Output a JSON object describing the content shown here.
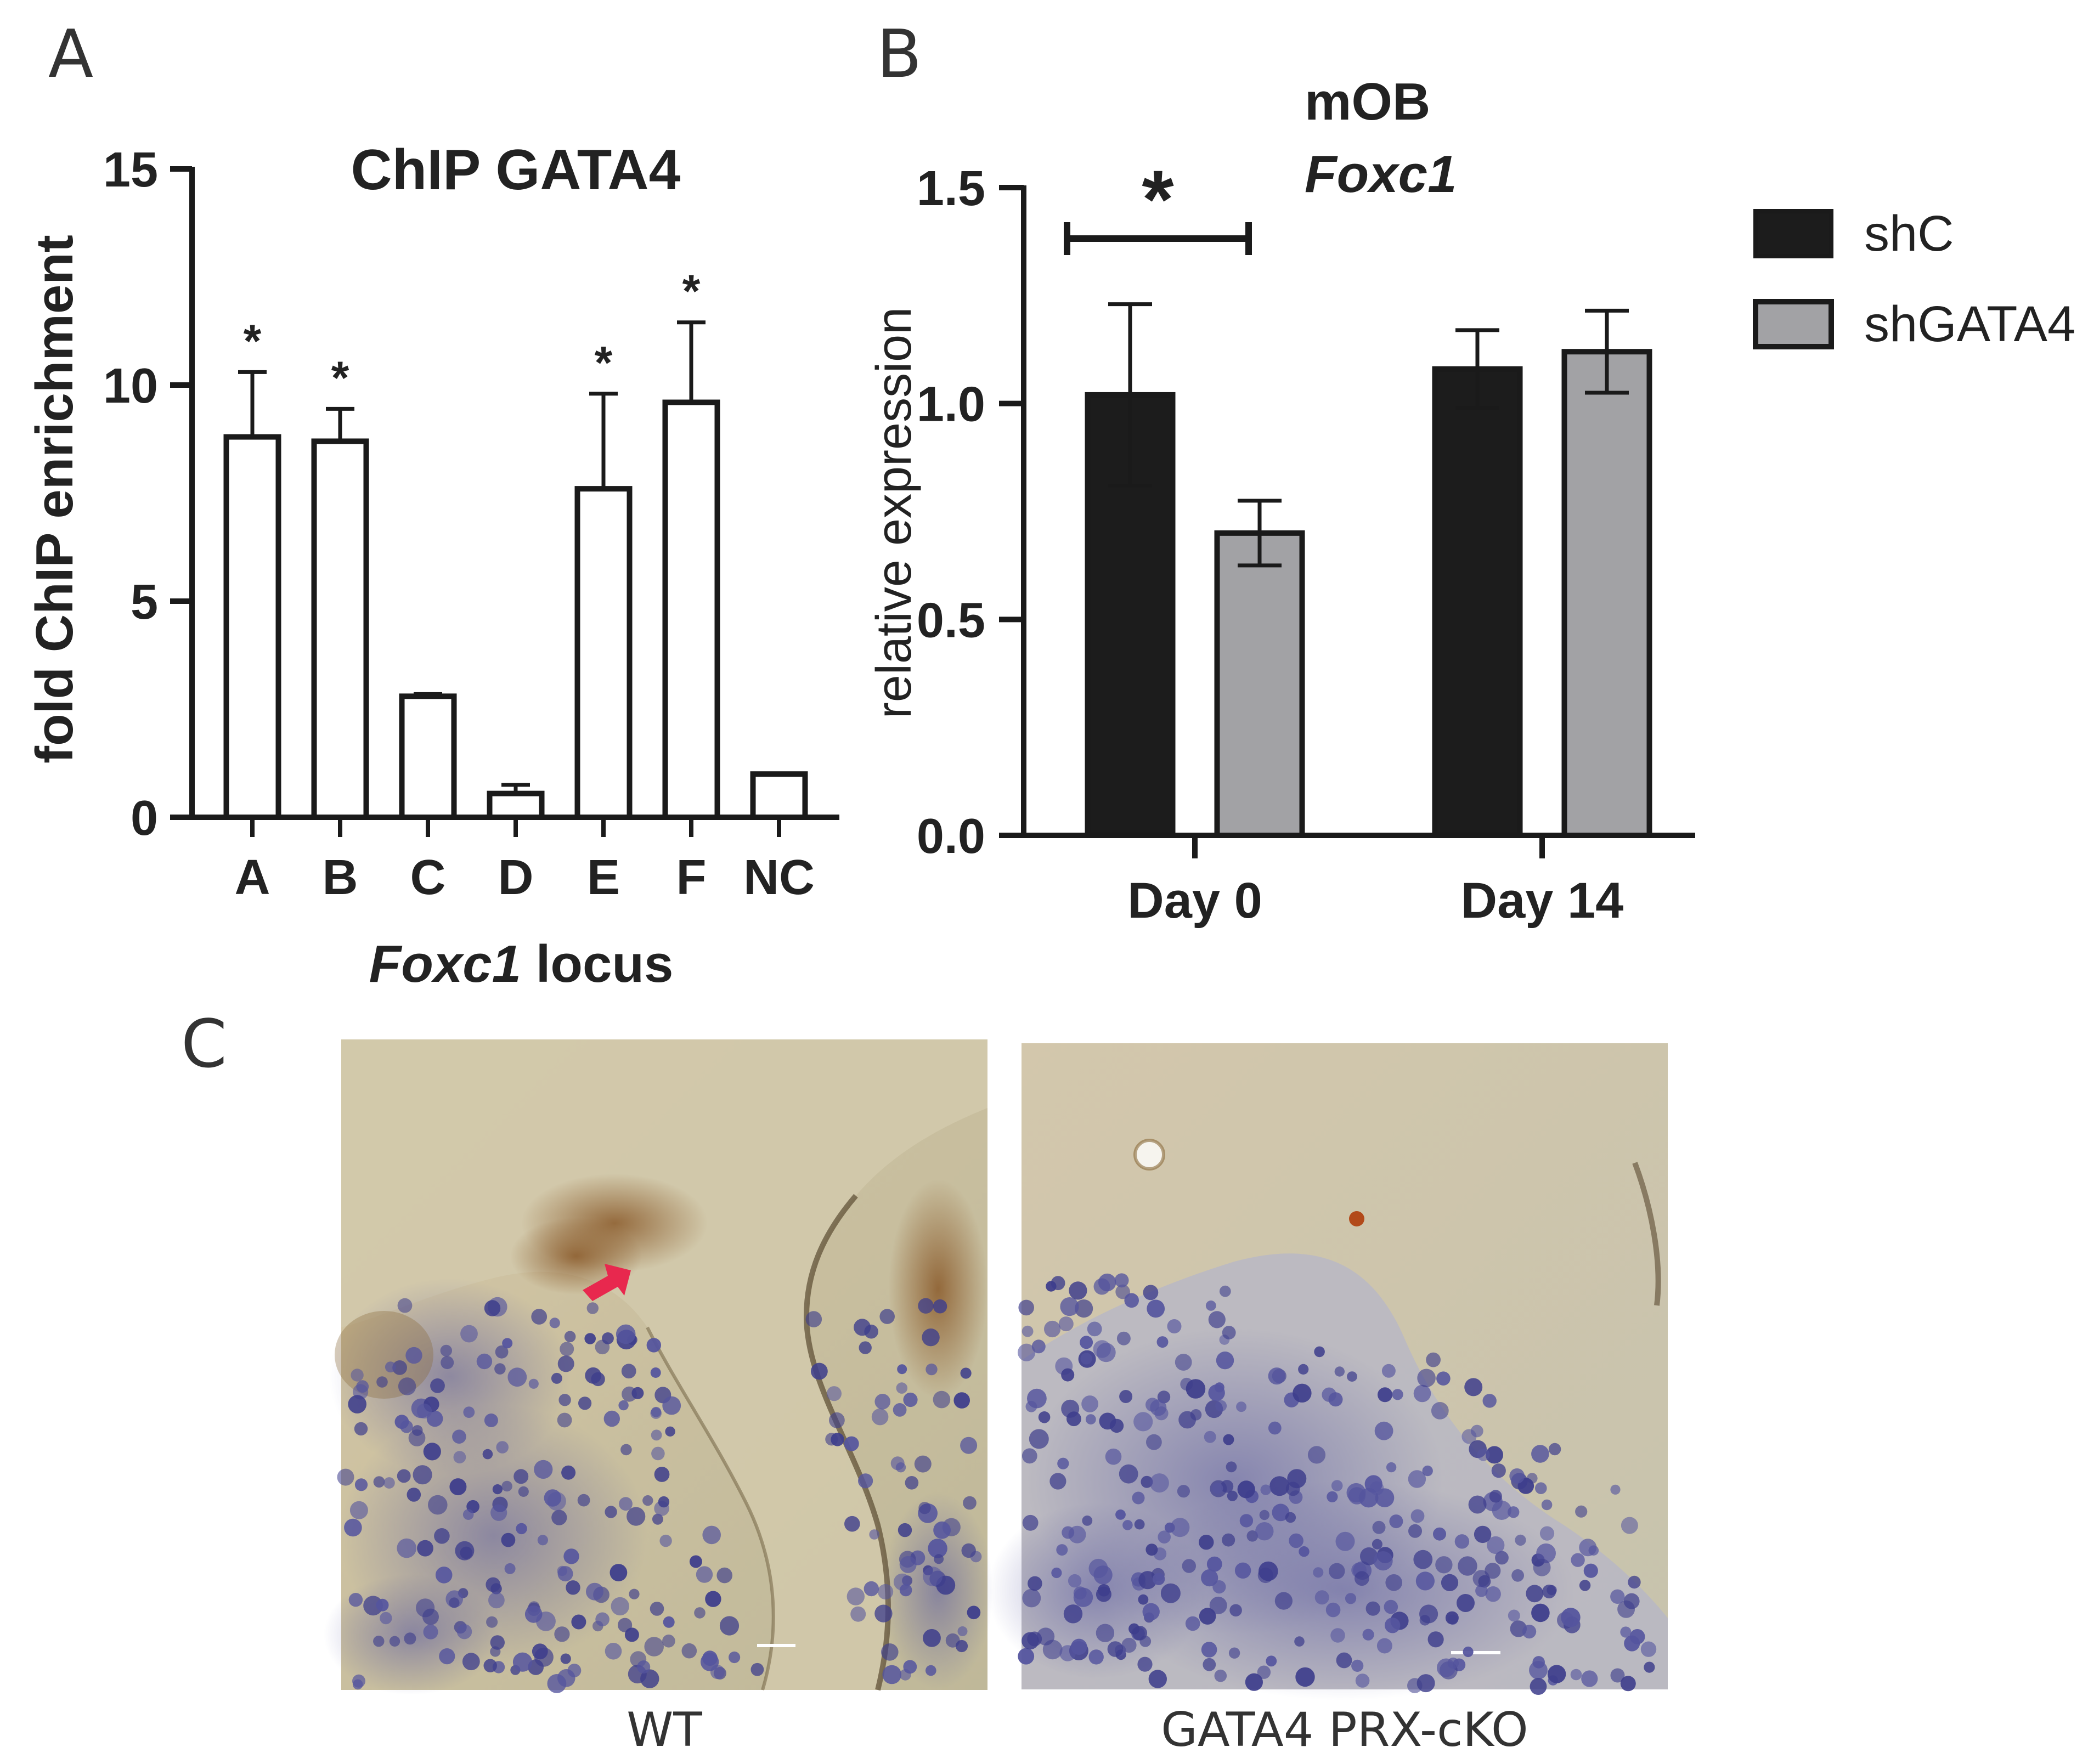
{
  "panels": {
    "a": {
      "letter": "A"
    },
    "b": {
      "letter": "B"
    },
    "c": {
      "letter": "C"
    }
  },
  "colors": {
    "axis": "#1a1a1a",
    "bar_a_fill": "#ffffff",
    "shC": "#1c1c1c",
    "shGATA4": "#a2a2a5",
    "arrow": "#e8284e"
  },
  "chart_data": [
    {
      "type": "bar",
      "title": "ChIP GATA4",
      "xlabel_italic": "Foxc1",
      "xlabel_rest": " locus",
      "ylabel": "fold ChIP enrichment",
      "ylim": [
        0,
        15
      ],
      "yticks": [
        "0",
        "5",
        "10",
        "15"
      ],
      "categories": [
        "A",
        "B",
        "C",
        "D",
        "E",
        "F",
        "NC"
      ],
      "values": [
        8.8,
        8.7,
        2.8,
        0.55,
        7.6,
        9.6,
        1.0
      ],
      "errors": [
        1.5,
        0.75,
        0.05,
        0.2,
        2.2,
        1.85,
        0.0
      ],
      "significance": [
        "*",
        "*",
        "",
        "",
        "*",
        "*",
        ""
      ]
    },
    {
      "type": "bar",
      "title_line1": "mOB",
      "title_line2": "Foxc1",
      "xlabel": "",
      "ylabel": "relative expression",
      "ylim": [
        0,
        1.5
      ],
      "yticks": [
        "0.0",
        "0.5",
        "1.0",
        "1.5"
      ],
      "categories": [
        "Day 0",
        "Day 14"
      ],
      "series": [
        {
          "name": "shC",
          "values": [
            1.02,
            1.08
          ],
          "errors": [
            0.21,
            0.09
          ]
        },
        {
          "name": "shGATA4",
          "values": [
            0.7,
            1.12
          ],
          "errors": [
            0.075,
            0.095
          ]
        }
      ],
      "significance_label": "*",
      "legend_position": "right"
    }
  ],
  "micrographs": {
    "left_label": "WT",
    "right_label": "GATA4 PRX-cKO"
  }
}
